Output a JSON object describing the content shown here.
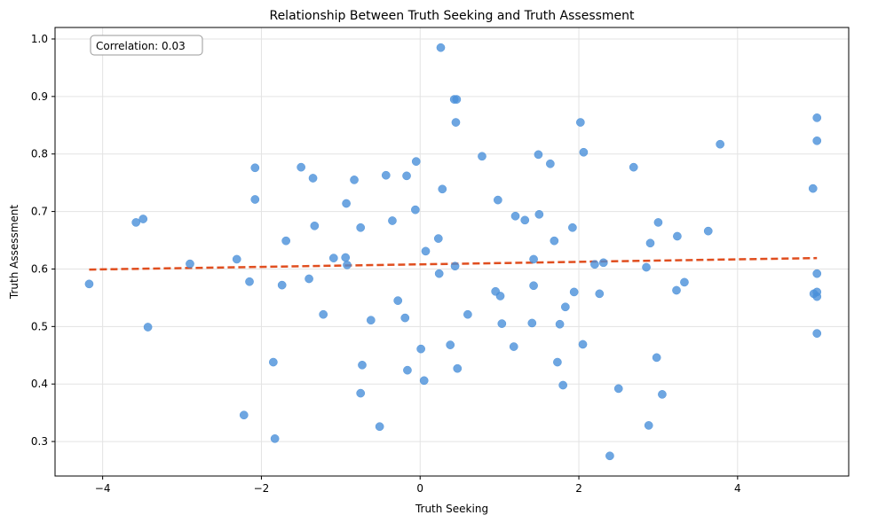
{
  "chart_data": {
    "type": "scatter",
    "title": "Relationship Between Truth Seeking and Truth Assessment",
    "xlabel": "Truth Seeking",
    "ylabel": "Truth Assessment",
    "xlim": [
      -4.6,
      5.4
    ],
    "ylim": [
      0.24,
      1.02
    ],
    "xticks": [
      -4,
      -2,
      0,
      2,
      4
    ],
    "xtick_labels": [
      "−4",
      "−2",
      "0",
      "2",
      "4"
    ],
    "yticks": [
      0.3,
      0.4,
      0.5,
      0.6,
      0.7,
      0.8,
      0.9,
      1.0
    ],
    "ytick_labels": [
      "0.3",
      "0.4",
      "0.5",
      "0.6",
      "0.7",
      "0.8",
      "0.9",
      "1.0"
    ],
    "grid": true,
    "annotation": "Correlation: 0.03",
    "colors": {
      "points": "#4a90d9",
      "trend": "#e04e1f"
    },
    "points": [
      [
        -4.17,
        0.574
      ],
      [
        -3.58,
        0.681
      ],
      [
        -3.49,
        0.687
      ],
      [
        -3.43,
        0.499
      ],
      [
        -2.9,
        0.609
      ],
      [
        -2.31,
        0.617
      ],
      [
        -2.22,
        0.346
      ],
      [
        -2.15,
        0.578
      ],
      [
        -2.08,
        0.776
      ],
      [
        -2.08,
        0.721
      ],
      [
        -1.85,
        0.438
      ],
      [
        -1.83,
        0.305
      ],
      [
        -1.74,
        0.572
      ],
      [
        -1.69,
        0.649
      ],
      [
        -1.5,
        0.777
      ],
      [
        -1.4,
        0.583
      ],
      [
        -1.35,
        0.758
      ],
      [
        -1.33,
        0.675
      ],
      [
        -1.22,
        0.521
      ],
      [
        -1.09,
        0.619
      ],
      [
        -0.94,
        0.62
      ],
      [
        -0.93,
        0.714
      ],
      [
        -0.92,
        0.607
      ],
      [
        -0.83,
        0.755
      ],
      [
        -0.75,
        0.672
      ],
      [
        -0.75,
        0.384
      ],
      [
        -0.73,
        0.433
      ],
      [
        -0.62,
        0.511
      ],
      [
        -0.51,
        0.326
      ],
      [
        -0.43,
        0.763
      ],
      [
        -0.35,
        0.684
      ],
      [
        -0.28,
        0.545
      ],
      [
        -0.19,
        0.515
      ],
      [
        -0.17,
        0.762
      ],
      [
        -0.16,
        0.424
      ],
      [
        -0.05,
        0.787
      ],
      [
        -0.06,
        0.703
      ],
      [
        0.01,
        0.461
      ],
      [
        0.05,
        0.406
      ],
      [
        0.07,
        0.631
      ],
      [
        0.23,
        0.653
      ],
      [
        0.24,
        0.592
      ],
      [
        0.26,
        0.985
      ],
      [
        0.28,
        0.739
      ],
      [
        0.38,
        0.468
      ],
      [
        0.43,
        0.895
      ],
      [
        0.46,
        0.895
      ],
      [
        0.44,
        0.605
      ],
      [
        0.45,
        0.855
      ],
      [
        0.47,
        0.427
      ],
      [
        0.6,
        0.521
      ],
      [
        0.78,
        0.796
      ],
      [
        0.95,
        0.561
      ],
      [
        0.98,
        0.72
      ],
      [
        1.01,
        0.553
      ],
      [
        1.03,
        0.505
      ],
      [
        1.18,
        0.465
      ],
      [
        1.2,
        0.692
      ],
      [
        1.32,
        0.685
      ],
      [
        1.41,
        0.506
      ],
      [
        1.43,
        0.617
      ],
      [
        1.43,
        0.571
      ],
      [
        1.49,
        0.799
      ],
      [
        1.5,
        0.695
      ],
      [
        1.64,
        0.783
      ],
      [
        1.69,
        0.649
      ],
      [
        1.73,
        0.438
      ],
      [
        1.76,
        0.504
      ],
      [
        1.8,
        0.398
      ],
      [
        1.83,
        0.534
      ],
      [
        1.92,
        0.672
      ],
      [
        1.94,
        0.56
      ],
      [
        2.02,
        0.855
      ],
      [
        2.05,
        0.469
      ],
      [
        2.06,
        0.803
      ],
      [
        2.2,
        0.608
      ],
      [
        2.26,
        0.557
      ],
      [
        2.31,
        0.611
      ],
      [
        2.39,
        0.275
      ],
      [
        2.5,
        0.392
      ],
      [
        2.69,
        0.777
      ],
      [
        2.85,
        0.603
      ],
      [
        2.88,
        0.328
      ],
      [
        2.9,
        0.645
      ],
      [
        2.98,
        0.446
      ],
      [
        3.0,
        0.681
      ],
      [
        3.05,
        0.382
      ],
      [
        3.23,
        0.563
      ],
      [
        3.24,
        0.657
      ],
      [
        3.33,
        0.577
      ],
      [
        3.63,
        0.666
      ],
      [
        3.78,
        0.817
      ],
      [
        4.95,
        0.74
      ],
      [
        4.96,
        0.557
      ],
      [
        5.0,
        0.863
      ],
      [
        5.0,
        0.823
      ],
      [
        5.0,
        0.592
      ],
      [
        5.0,
        0.56
      ],
      [
        5.0,
        0.552
      ],
      [
        5.0,
        0.488
      ]
    ],
    "trendline": {
      "x": [
        -4.17,
        5.0
      ],
      "y": [
        0.599,
        0.619
      ]
    }
  }
}
